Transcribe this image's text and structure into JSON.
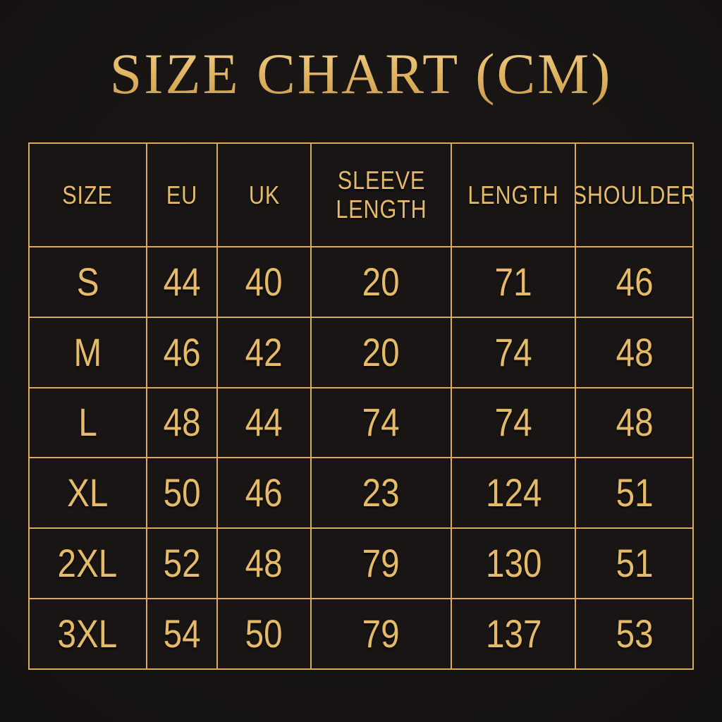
{
  "page": {
    "title": "SIZE CHART (CM)",
    "colors": {
      "background": "#151212",
      "gold_text": "#e5ba68",
      "gold_border": "#d9ab59",
      "cell_background": "#181514",
      "title_gold_light": "#f0d18c",
      "title_gold_dark": "#c9994d"
    }
  },
  "chart_data": {
    "type": "table",
    "title": "SIZE CHART (CM)",
    "columns": [
      "SIZE",
      "EU",
      "UK",
      "SLEEVE\nLENGTH",
      "LENGTH",
      "SHOULDER"
    ],
    "rows": [
      [
        "S",
        "44",
        "40",
        "20",
        "71",
        "46"
      ],
      [
        "M",
        "46",
        "42",
        "20",
        "74",
        "48"
      ],
      [
        "L",
        "48",
        "44",
        "74",
        "74",
        "48"
      ],
      [
        "XL",
        "50",
        "46",
        "23",
        "124",
        "51"
      ],
      [
        "2XL",
        "52",
        "48",
        "79",
        "130",
        "51"
      ],
      [
        "3XL",
        "54",
        "50",
        "79",
        "137",
        "53"
      ]
    ]
  }
}
